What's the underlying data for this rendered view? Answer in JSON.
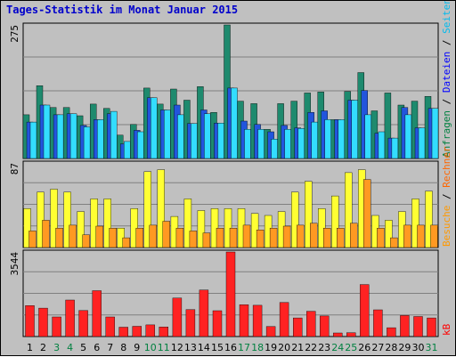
{
  "title": "Tages-Statistik im Monat Januar 2015",
  "chart_data": [
    {
      "type": "bar",
      "panel": "top",
      "ylim": [
        0,
        275
      ],
      "ytick": "275",
      "days": [
        "1",
        "2",
        "3",
        "4",
        "5",
        "6",
        "7",
        "8",
        "9",
        "10",
        "11",
        "12",
        "13",
        "14",
        "15",
        "16",
        "17",
        "18",
        "19",
        "20",
        "21",
        "22",
        "23",
        "24",
        "25",
        "26",
        "27",
        "28",
        "29",
        "30",
        "31"
      ],
      "weekend_days": [
        "3",
        "4",
        "10",
        "11",
        "17",
        "18",
        "24",
        "25",
        "31"
      ],
      "series": [
        {
          "name": "Anfragen",
          "color": "#1e8a6e",
          "values": [
            90,
            150,
            105,
            105,
            88,
            112,
            103,
            48,
            70,
            145,
            112,
            143,
            120,
            148,
            95,
            275,
            118,
            113,
            60,
            113,
            118,
            135,
            137,
            80,
            138,
            177,
            98,
            135,
            110,
            118,
            128
          ]
        },
        {
          "name": "Dateien",
          "color": "#2255dd",
          "values": [
            75,
            110,
            90,
            92,
            68,
            80,
            92,
            30,
            58,
            125,
            100,
            110,
            72,
            100,
            73,
            145,
            77,
            70,
            55,
            68,
            63,
            95,
            98,
            80,
            120,
            140,
            52,
            42,
            105,
            63,
            103
          ]
        },
        {
          "name": "Seiten",
          "color": "#33ddff",
          "values": [
            75,
            110,
            90,
            92,
            65,
            80,
            97,
            35,
            55,
            125,
            100,
            90,
            72,
            92,
            73,
            145,
            60,
            60,
            40,
            60,
            62,
            75,
            80,
            80,
            120,
            90,
            55,
            42,
            90,
            63,
            103
          ]
        }
      ],
      "side_labels": [
        {
          "text": "Anfragen",
          "color": "#008040"
        },
        {
          "text": " / ",
          "color": "#000000"
        },
        {
          "text": "Dateien",
          "color": "#0000ff"
        },
        {
          "text": " / ",
          "color": "#000000"
        },
        {
          "text": "Seiten",
          "color": "#00bbee"
        }
      ]
    },
    {
      "type": "bar",
      "panel": "middle",
      "ylim": [
        0,
        87
      ],
      "ytick": "87",
      "series": [
        {
          "name": "Besuche",
          "color": "#ffff33",
          "values": [
            40,
            57,
            60,
            57,
            37,
            50,
            50,
            20,
            40,
            78,
            80,
            32,
            50,
            38,
            40,
            40,
            40,
            35,
            33,
            37,
            57,
            68,
            40,
            53,
            77,
            80,
            33,
            28,
            37,
            50,
            58
          ]
        },
        {
          "name": "Rechner",
          "color": "#ff9922",
          "values": [
            17,
            28,
            20,
            23,
            13,
            22,
            20,
            10,
            20,
            23,
            27,
            20,
            17,
            15,
            20,
            20,
            23,
            18,
            20,
            22,
            23,
            25,
            20,
            20,
            25,
            70,
            20,
            10,
            23,
            23,
            23
          ]
        }
      ],
      "side_labels": [
        {
          "text": "Besuche",
          "color": "#ff9900"
        },
        {
          "text": " / ",
          "color": "#000000"
        },
        {
          "text": "Rechner",
          "color": "#ff6600"
        }
      ]
    },
    {
      "type": "bar",
      "panel": "bottom",
      "ylim": [
        0,
        3544
      ],
      "ytick": "3544",
      "series": [
        {
          "name": "kB",
          "color": "#ff2222",
          "values": [
            1300,
            1190,
            820,
            1530,
            1090,
            1920,
            820,
            390,
            430,
            490,
            400,
            1610,
            1130,
            1950,
            1080,
            3544,
            1330,
            1310,
            420,
            1430,
            780,
            1060,
            860,
            150,
            160,
            2180,
            1120,
            370,
            880,
            840,
            780
          ]
        }
      ],
      "side_labels": [
        {
          "text": "kB",
          "color": "#ff0000"
        }
      ]
    }
  ]
}
